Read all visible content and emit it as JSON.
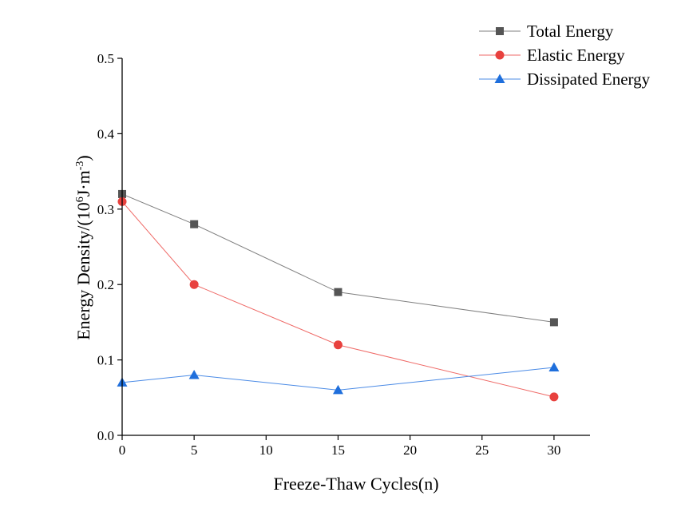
{
  "chart_data": {
    "type": "line",
    "title": "",
    "xlabel": "Freeze-Thaw Cycles(n)",
    "ylabel": "Energy Density/(10⁶J·m⁻³)",
    "ylabel_parts": {
      "prefix": "Energy Density/(10",
      "exp1": "6",
      "mid": "J",
      "dot": "·",
      "unit": "m",
      "exp2": "-3",
      "suffix": ")"
    },
    "xlim": [
      0,
      32.5
    ],
    "ylim": [
      0,
      0.5
    ],
    "x_ticks": [
      0,
      5,
      10,
      15,
      20,
      25,
      30
    ],
    "x_tick_labels": [
      "0",
      "5",
      "10",
      "15",
      "20",
      "25",
      "30"
    ],
    "y_ticks": [
      0,
      0.1,
      0.2,
      0.3,
      0.4,
      0.5
    ],
    "y_tick_labels": [
      "0.0",
      "0.1",
      "0.2",
      "0.3",
      "0.4",
      "0.5"
    ],
    "x": [
      0,
      5,
      15,
      30
    ],
    "legend_position": "top-right",
    "grid": false,
    "series": [
      {
        "name": "Total Energy",
        "values": [
          0.32,
          0.28,
          0.19,
          0.15
        ],
        "color": "#555555",
        "line_color": "#7f7f7f",
        "marker": "square"
      },
      {
        "name": "Elastic Energy",
        "values": [
          0.31,
          0.2,
          0.12,
          0.051
        ],
        "color": "#e8413e",
        "line_color": "#ef6a67",
        "marker": "circle"
      },
      {
        "name": "Dissipated Energy",
        "values": [
          0.07,
          0.08,
          0.06,
          0.09
        ],
        "color": "#1f6fdc",
        "line_color": "#4b8be6",
        "marker": "triangle"
      }
    ]
  }
}
